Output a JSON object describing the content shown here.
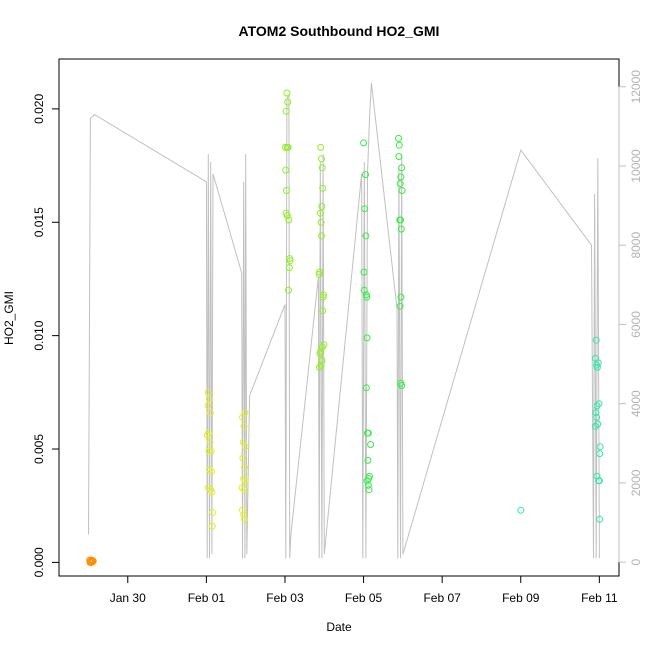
{
  "chart_data": {
    "type": "scatter",
    "title": "ATOM2 Southbound HO2_GMI",
    "xlabel": "Date",
    "ylabel": "HO2_GMI",
    "x_ticks": [
      "Jan 30",
      "Feb 01",
      "Feb 03",
      "Feb 05",
      "Feb 07",
      "Feb 09",
      "Feb 11"
    ],
    "x_tick_values": [
      30,
      32,
      34,
      36,
      38,
      40,
      42
    ],
    "xlim": [
      28.25,
      42.5
    ],
    "y_ticks": [
      "0.000",
      "0.005",
      "0.010",
      "0.015",
      "0.020"
    ],
    "y_tick_values": [
      0,
      0.005,
      0.01,
      0.015,
      0.02
    ],
    "ylim": [
      -0.0006,
      0.0222
    ],
    "y2_ticks": [
      "0",
      "2000",
      "4000",
      "6000",
      "8000",
      "10000",
      "12000"
    ],
    "y2_tick_values": [
      0,
      2000,
      4000,
      6000,
      8000,
      10000,
      12000
    ],
    "y2lim": [
      -350,
      12700
    ],
    "secondary_series_color": "#c0c0c0",
    "grid": false,
    "legend": "none",
    "points": [
      {
        "x": 29.03,
        "y": 0.0001,
        "c": "#ff8c00"
      },
      {
        "x": 29.05,
        "y": 5e-05,
        "c": "#ff8c00"
      },
      {
        "x": 29.07,
        "y": 0.0,
        "c": "#ff8c00"
      },
      {
        "x": 29.09,
        "y": 8e-05,
        "c": "#ff8c00"
      },
      {
        "x": 29.1,
        "y": 2e-05,
        "c": "#ff8c00"
      },
      {
        "x": 29.12,
        "y": 6e-05,
        "c": "#ff8c00"
      },
      {
        "x": 29.04,
        "y": 0.0,
        "c": "#ff8c00"
      },
      {
        "x": 29.08,
        "y": 0.0001,
        "c": "#ff8c00"
      },
      {
        "x": 32.05,
        "y": 0.0075,
        "c": "#e6f020"
      },
      {
        "x": 32.08,
        "y": 0.0072,
        "c": "#e6f020"
      },
      {
        "x": 32.04,
        "y": 0.0069,
        "c": "#e6f020"
      },
      {
        "x": 32.1,
        "y": 0.0066,
        "c": "#e6f020"
      },
      {
        "x": 32.06,
        "y": 0.0057,
        "c": "#e6f020"
      },
      {
        "x": 32.03,
        "y": 0.0056,
        "c": "#e6f020"
      },
      {
        "x": 32.09,
        "y": 0.0053,
        "c": "#e6f020"
      },
      {
        "x": 32.07,
        "y": 0.0049,
        "c": "#e6f020"
      },
      {
        "x": 32.12,
        "y": 0.0049,
        "c": "#e6f020"
      },
      {
        "x": 32.08,
        "y": 0.0041,
        "c": "#e6f020"
      },
      {
        "x": 32.13,
        "y": 0.004,
        "c": "#e6f020"
      },
      {
        "x": 32.05,
        "y": 0.0033,
        "c": "#e6f020"
      },
      {
        "x": 32.11,
        "y": 0.0032,
        "c": "#e6f020"
      },
      {
        "x": 32.14,
        "y": 0.0031,
        "c": "#e6f020"
      },
      {
        "x": 32.16,
        "y": 0.0022,
        "c": "#e6f020"
      },
      {
        "x": 32.15,
        "y": 0.0016,
        "c": "#e6f020"
      },
      {
        "x": 32.92,
        "y": 0.0064,
        "c": "#e6f020"
      },
      {
        "x": 32.98,
        "y": 0.0066,
        "c": "#e6f020"
      },
      {
        "x": 32.96,
        "y": 0.006,
        "c": "#e6f020"
      },
      {
        "x": 32.94,
        "y": 0.0053,
        "c": "#e6f020"
      },
      {
        "x": 32.99,
        "y": 0.0051,
        "c": "#e6f020"
      },
      {
        "x": 32.93,
        "y": 0.0046,
        "c": "#e6f020"
      },
      {
        "x": 32.97,
        "y": 0.0042,
        "c": "#e6f020"
      },
      {
        "x": 32.95,
        "y": 0.0037,
        "c": "#e6f020"
      },
      {
        "x": 32.99,
        "y": 0.0036,
        "c": "#e6f020"
      },
      {
        "x": 32.91,
        "y": 0.0033,
        "c": "#e6f020"
      },
      {
        "x": 32.96,
        "y": 0.0032,
        "c": "#e6f020"
      },
      {
        "x": 32.92,
        "y": 0.0023,
        "c": "#e6f020"
      },
      {
        "x": 32.95,
        "y": 0.0021,
        "c": "#e6f020"
      },
      {
        "x": 32.97,
        "y": 0.0019,
        "c": "#e6f020"
      },
      {
        "x": 34.05,
        "y": 0.0207,
        "c": "#90f020"
      },
      {
        "x": 34.07,
        "y": 0.0203,
        "c": "#90f020"
      },
      {
        "x": 34.03,
        "y": 0.0199,
        "c": "#90f020"
      },
      {
        "x": 34.01,
        "y": 0.0183,
        "c": "#90f020"
      },
      {
        "x": 34.06,
        "y": 0.0183,
        "c": "#90f020"
      },
      {
        "x": 34.08,
        "y": 0.0183,
        "c": "#90f020"
      },
      {
        "x": 34.02,
        "y": 0.0173,
        "c": "#90f020"
      },
      {
        "x": 34.04,
        "y": 0.0164,
        "c": "#90f020"
      },
      {
        "x": 34.03,
        "y": 0.0154,
        "c": "#90f020"
      },
      {
        "x": 34.06,
        "y": 0.0153,
        "c": "#90f020"
      },
      {
        "x": 34.1,
        "y": 0.0151,
        "c": "#90f020"
      },
      {
        "x": 34.12,
        "y": 0.0134,
        "c": "#90f020"
      },
      {
        "x": 34.13,
        "y": 0.0133,
        "c": "#90f020"
      },
      {
        "x": 34.11,
        "y": 0.013,
        "c": "#90f020"
      },
      {
        "x": 34.09,
        "y": 0.012,
        "c": "#90f020"
      },
      {
        "x": 34.91,
        "y": 0.0183,
        "c": "#90f020"
      },
      {
        "x": 34.93,
        "y": 0.0178,
        "c": "#90f020"
      },
      {
        "x": 34.95,
        "y": 0.0174,
        "c": "#90f020"
      },
      {
        "x": 34.96,
        "y": 0.0165,
        "c": "#90f020"
      },
      {
        "x": 34.94,
        "y": 0.0157,
        "c": "#90f020"
      },
      {
        "x": 34.9,
        "y": 0.0154,
        "c": "#90f020"
      },
      {
        "x": 34.92,
        "y": 0.015,
        "c": "#90f020"
      },
      {
        "x": 34.93,
        "y": 0.0144,
        "c": "#90f020"
      },
      {
        "x": 34.88,
        "y": 0.0128,
        "c": "#90f020"
      },
      {
        "x": 34.87,
        "y": 0.0127,
        "c": "#90f020"
      },
      {
        "x": 34.97,
        "y": 0.0117,
        "c": "#90f020"
      },
      {
        "x": 34.98,
        "y": 0.0118,
        "c": "#90f020"
      },
      {
        "x": 34.96,
        "y": 0.0111,
        "c": "#90f020"
      },
      {
        "x": 34.99,
        "y": 0.0096,
        "c": "#90f020"
      },
      {
        "x": 34.95,
        "y": 0.0095,
        "c": "#90f020"
      },
      {
        "x": 34.91,
        "y": 0.0093,
        "c": "#90f020"
      },
      {
        "x": 34.89,
        "y": 0.0092,
        "c": "#90f020"
      },
      {
        "x": 34.94,
        "y": 0.0089,
        "c": "#90f020"
      },
      {
        "x": 34.92,
        "y": 0.0087,
        "c": "#90f020"
      },
      {
        "x": 34.88,
        "y": 0.0086,
        "c": "#90f020"
      },
      {
        "x": 36.0,
        "y": 0.0185,
        "c": "#33ee44"
      },
      {
        "x": 36.05,
        "y": 0.0171,
        "c": "#33ee44"
      },
      {
        "x": 36.03,
        "y": 0.0156,
        "c": "#33ee44"
      },
      {
        "x": 36.06,
        "y": 0.0144,
        "c": "#33ee44"
      },
      {
        "x": 36.01,
        "y": 0.0128,
        "c": "#33ee44"
      },
      {
        "x": 36.02,
        "y": 0.012,
        "c": "#33ee44"
      },
      {
        "x": 36.07,
        "y": 0.0118,
        "c": "#33ee44"
      },
      {
        "x": 36.08,
        "y": 0.0117,
        "c": "#33ee44"
      },
      {
        "x": 36.09,
        "y": 0.0099,
        "c": "#33ee44"
      },
      {
        "x": 36.07,
        "y": 0.0077,
        "c": "#33ee44"
      },
      {
        "x": 36.1,
        "y": 0.0057,
        "c": "#33ee44"
      },
      {
        "x": 36.12,
        "y": 0.0057,
        "c": "#33ee44"
      },
      {
        "x": 36.18,
        "y": 0.0052,
        "c": "#33ee44"
      },
      {
        "x": 36.11,
        "y": 0.0045,
        "c": "#33ee44"
      },
      {
        "x": 36.15,
        "y": 0.0038,
        "c": "#33ee44"
      },
      {
        "x": 36.13,
        "y": 0.0037,
        "c": "#33ee44"
      },
      {
        "x": 36.09,
        "y": 0.0036,
        "c": "#33ee44"
      },
      {
        "x": 36.12,
        "y": 0.0034,
        "c": "#33ee44"
      },
      {
        "x": 36.14,
        "y": 0.0032,
        "c": "#33ee44"
      },
      {
        "x": 36.89,
        "y": 0.0187,
        "c": "#33ee44"
      },
      {
        "x": 36.91,
        "y": 0.0184,
        "c": "#33ee44"
      },
      {
        "x": 36.9,
        "y": 0.0179,
        "c": "#33ee44"
      },
      {
        "x": 36.97,
        "y": 0.0174,
        "c": "#33ee44"
      },
      {
        "x": 36.95,
        "y": 0.017,
        "c": "#33ee44"
      },
      {
        "x": 36.93,
        "y": 0.0167,
        "c": "#33ee44"
      },
      {
        "x": 36.98,
        "y": 0.0164,
        "c": "#33ee44"
      },
      {
        "x": 36.94,
        "y": 0.0151,
        "c": "#33ee44"
      },
      {
        "x": 36.92,
        "y": 0.0151,
        "c": "#33ee44"
      },
      {
        "x": 36.96,
        "y": 0.0147,
        "c": "#33ee44"
      },
      {
        "x": 36.95,
        "y": 0.0117,
        "c": "#33ee44"
      },
      {
        "x": 36.93,
        "y": 0.0113,
        "c": "#33ee44"
      },
      {
        "x": 36.95,
        "y": 0.0079,
        "c": "#33ee44"
      },
      {
        "x": 36.97,
        "y": 0.0078,
        "c": "#33ee44"
      },
      {
        "x": 40.0,
        "y": 0.0023,
        "c": "#33e8a8"
      },
      {
        "x": 41.92,
        "y": 0.0098,
        "c": "#33e8a8"
      },
      {
        "x": 41.9,
        "y": 0.009,
        "c": "#33e8a8"
      },
      {
        "x": 41.97,
        "y": 0.0088,
        "c": "#33e8a8"
      },
      {
        "x": 41.93,
        "y": 0.0087,
        "c": "#33e8a8"
      },
      {
        "x": 41.95,
        "y": 0.0086,
        "c": "#33e8a8"
      },
      {
        "x": 41.99,
        "y": 0.007,
        "c": "#33e8a8"
      },
      {
        "x": 41.94,
        "y": 0.0069,
        "c": "#33e8a8"
      },
      {
        "x": 41.91,
        "y": 0.0066,
        "c": "#33e8a8"
      },
      {
        "x": 41.93,
        "y": 0.0064,
        "c": "#33e8a8"
      },
      {
        "x": 41.96,
        "y": 0.0061,
        "c": "#33e8a8"
      },
      {
        "x": 41.9,
        "y": 0.006,
        "c": "#33e8a8"
      },
      {
        "x": 42.02,
        "y": 0.0051,
        "c": "#33e8a8"
      },
      {
        "x": 42.01,
        "y": 0.0048,
        "c": "#33e8a8"
      },
      {
        "x": 41.94,
        "y": 0.0038,
        "c": "#33e8a8"
      },
      {
        "x": 41.98,
        "y": 0.0036,
        "c": "#33e8a8"
      },
      {
        "x": 42.0,
        "y": 0.0036,
        "c": "#33e8a8"
      },
      {
        "x": 42.01,
        "y": 0.0019,
        "c": "#33e8a8"
      }
    ],
    "secondary_line": [
      [
        29.0,
        700
      ],
      [
        29.05,
        11200
      ],
      [
        29.15,
        11300
      ],
      [
        32.0,
        9600
      ],
      [
        32.02,
        100
      ],
      [
        32.05,
        10300
      ],
      [
        32.08,
        100
      ],
      [
        32.11,
        10100
      ],
      [
        32.14,
        200
      ],
      [
        32.17,
        9800
      ],
      [
        32.9,
        7300
      ],
      [
        32.92,
        100
      ],
      [
        32.95,
        9600
      ],
      [
        32.98,
        100
      ],
      [
        33.0,
        10300
      ],
      [
        33.03,
        200
      ],
      [
        33.1,
        4200
      ],
      [
        34.0,
        6500
      ],
      [
        34.02,
        100
      ],
      [
        34.05,
        11700
      ],
      [
        34.1,
        11800
      ],
      [
        34.12,
        100
      ],
      [
        34.15,
        700
      ],
      [
        34.85,
        7200
      ],
      [
        34.87,
        100
      ],
      [
        34.9,
        10100
      ],
      [
        34.94,
        100
      ],
      [
        34.97,
        10300
      ],
      [
        35.0,
        200
      ],
      [
        35.95,
        9800
      ],
      [
        35.98,
        100
      ],
      [
        36.02,
        10100
      ],
      [
        36.06,
        100
      ],
      [
        36.1,
        9800
      ],
      [
        36.15,
        11200
      ],
      [
        36.2,
        12100
      ],
      [
        36.85,
        6400
      ],
      [
        36.87,
        100
      ],
      [
        36.9,
        10000
      ],
      [
        36.94,
        100
      ],
      [
        36.97,
        10300
      ],
      [
        37.0,
        200
      ],
      [
        40.0,
        10400
      ],
      [
        41.8,
        8000
      ],
      [
        41.85,
        100
      ],
      [
        41.88,
        9300
      ],
      [
        41.92,
        100
      ],
      [
        41.96,
        10200
      ],
      [
        42.0,
        100
      ]
    ]
  }
}
